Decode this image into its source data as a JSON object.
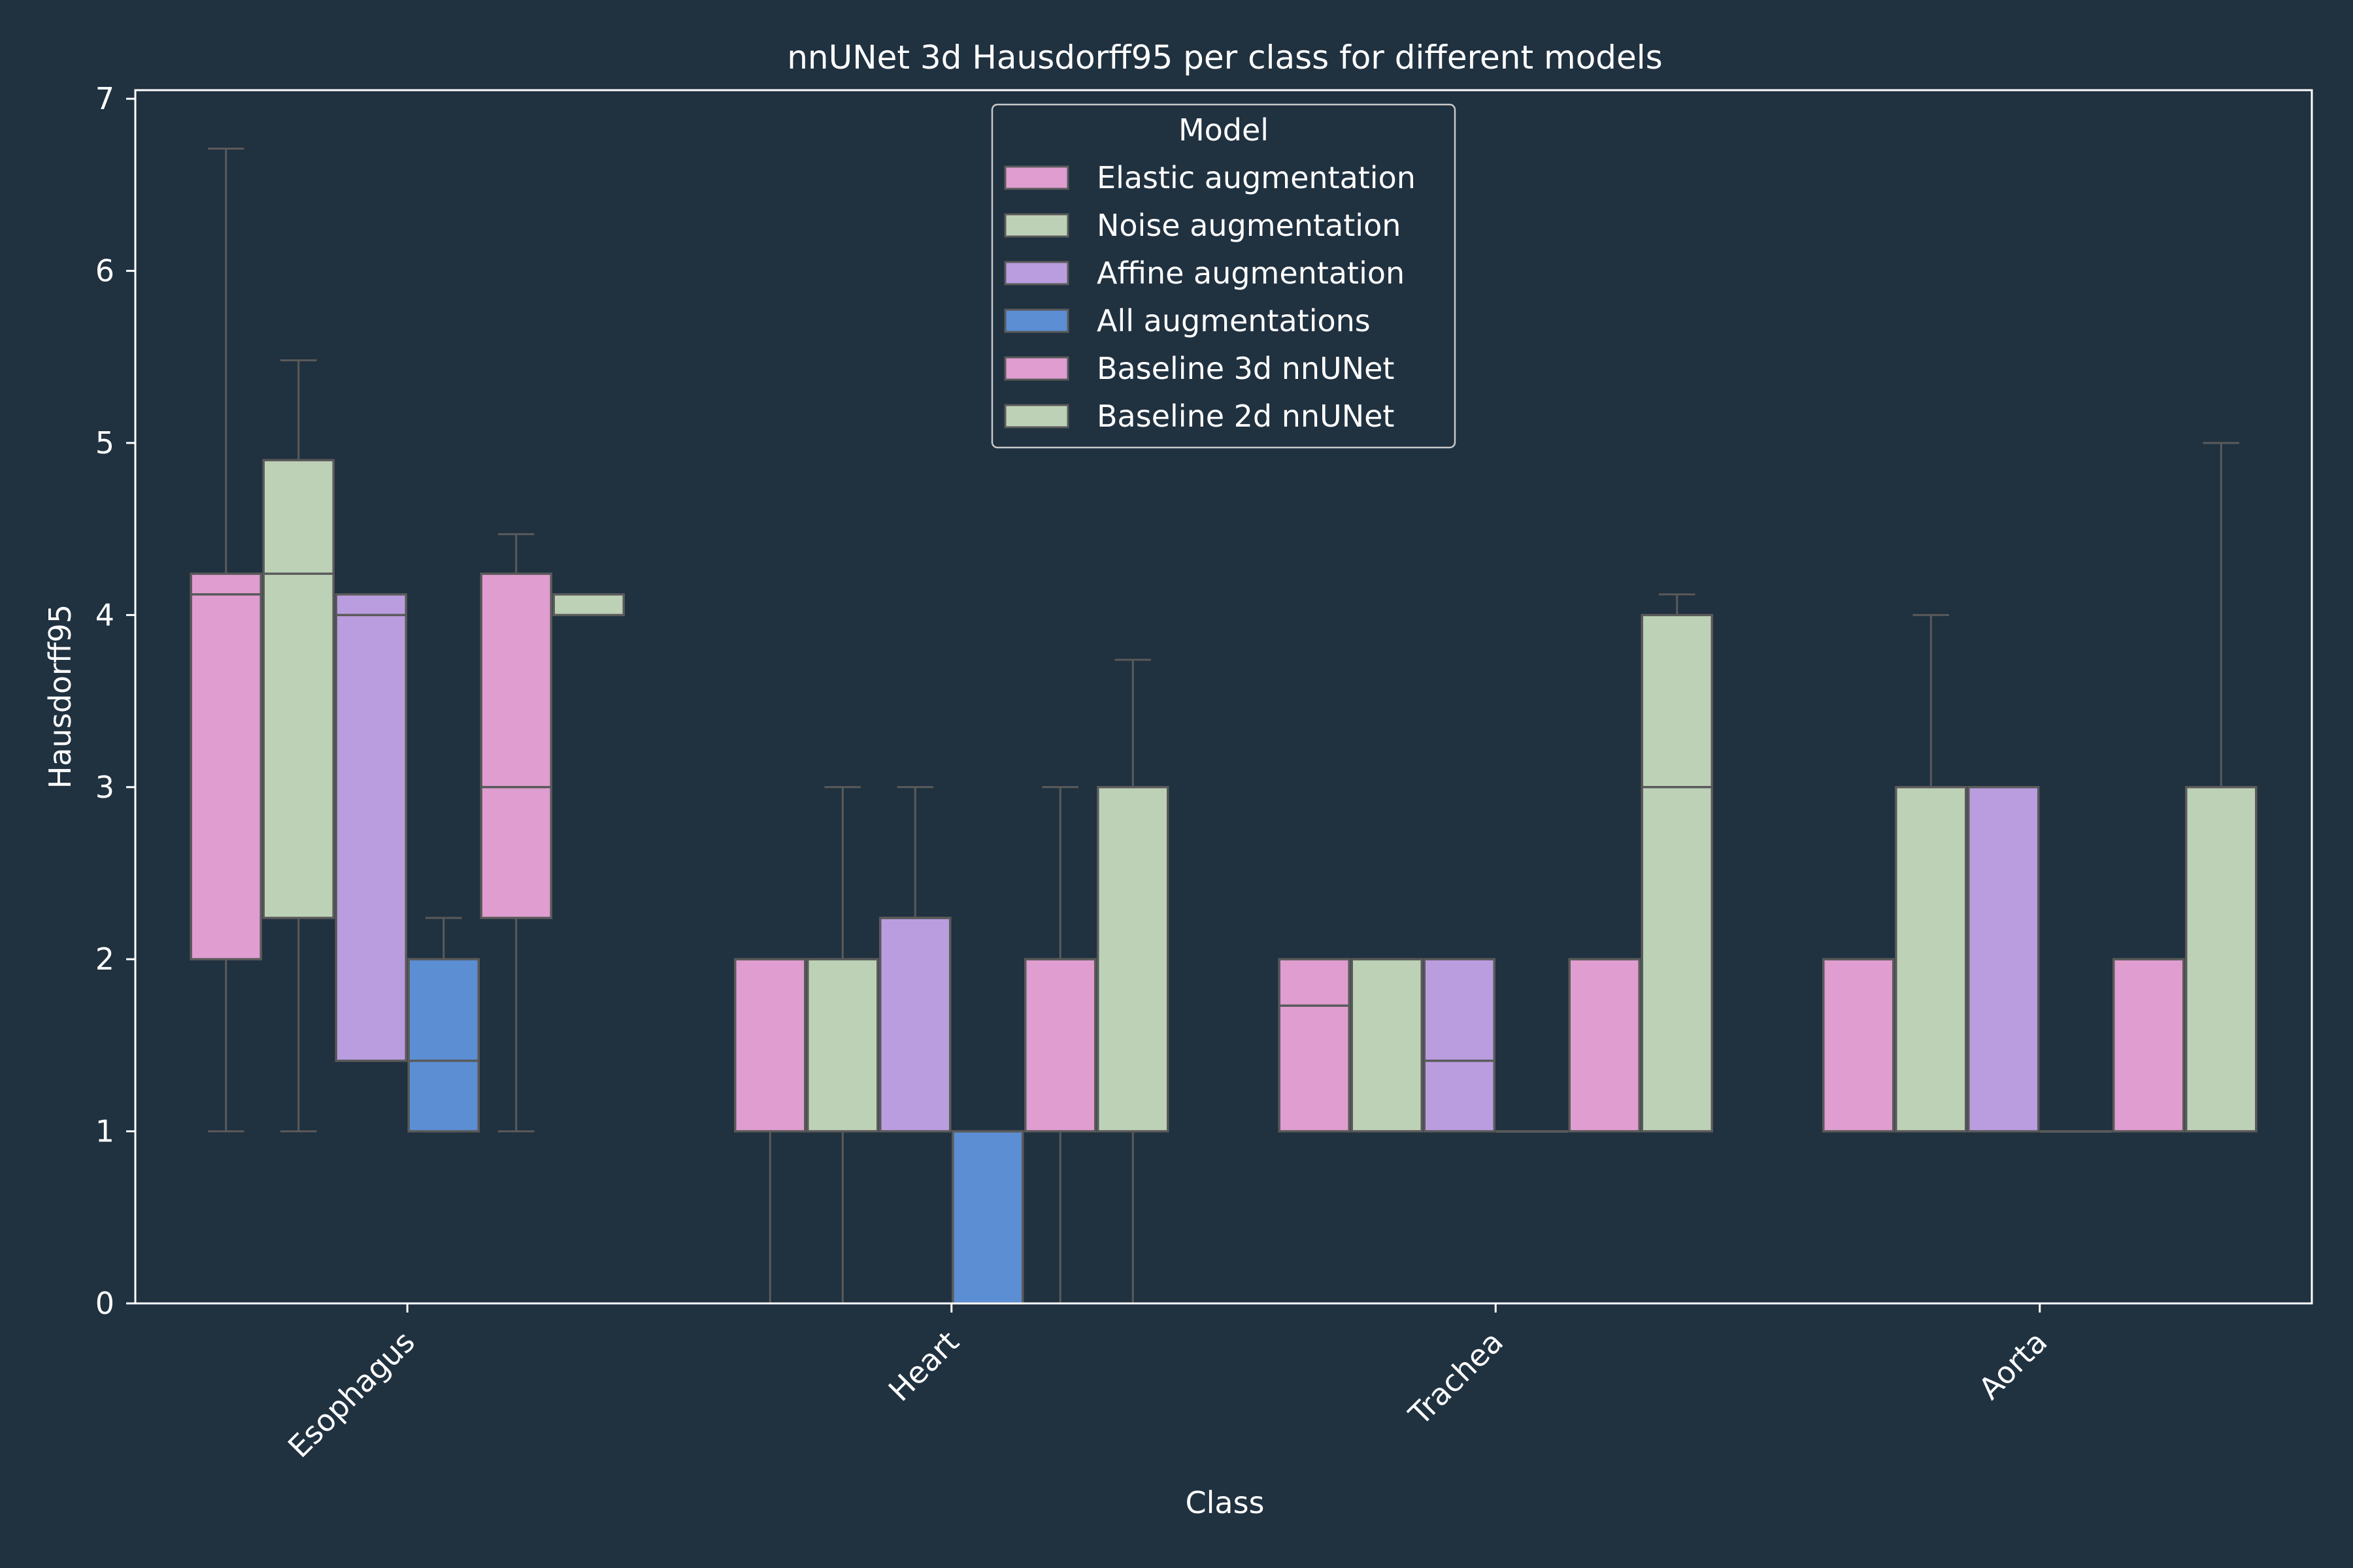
{
  "chart_data": {
    "type": "box",
    "title": "nnUNet 3d Hausdorff95 per class for different models",
    "xlabel": "Class",
    "ylabel": "Hausdorff95",
    "ylim": [
      0,
      7.05
    ],
    "yticks": [
      0,
      1,
      2,
      3,
      4,
      5,
      6,
      7
    ],
    "categories": [
      "Esophagus",
      "Heart",
      "Trachea",
      "Aorta"
    ],
    "legend": {
      "title": "Model",
      "position": "top-center"
    },
    "colors": {
      "background": "#203140",
      "box_edge": "#5a5a5a",
      "axis": "#ffffff"
    },
    "series": [
      {
        "name": "Elastic augmentation",
        "color": "#df9dd0",
        "boxes": [
          {
            "whislo": 1,
            "q1": 2,
            "med": 4.12,
            "q3": 4.24,
            "whishi": 6.71
          },
          {
            "whislo": 0,
            "q1": 1,
            "med": 2,
            "q3": 2,
            "whishi": 2
          },
          {
            "whislo": 1,
            "q1": 1,
            "med": 1.73,
            "q3": 2,
            "whishi": 2
          },
          {
            "whislo": 1,
            "q1": 1,
            "med": 2,
            "q3": 2,
            "whishi": 2
          }
        ]
      },
      {
        "name": "Noise augmentation",
        "color": "#bdd1b7",
        "boxes": [
          {
            "whislo": 1,
            "q1": 2.24,
            "med": 4.24,
            "q3": 4.9,
            "whishi": 5.48
          },
          {
            "whislo": 0,
            "q1": 1,
            "med": 2,
            "q3": 2,
            "whishi": 3
          },
          {
            "whislo": 1,
            "q1": 1,
            "med": 2,
            "q3": 2,
            "whishi": 2
          },
          {
            "whislo": 1,
            "q1": 1,
            "med": 3,
            "q3": 3,
            "whishi": 4
          }
        ]
      },
      {
        "name": "Affine augmentation",
        "color": "#ba9ddf",
        "boxes": [
          {
            "whislo": 1.41,
            "q1": 1.41,
            "med": 4,
            "q3": 4.12,
            "whishi": 4.12
          },
          {
            "whislo": 1,
            "q1": 1,
            "med": 2.24,
            "q3": 2.24,
            "whishi": 3
          },
          {
            "whislo": 1,
            "q1": 1,
            "med": 1.41,
            "q3": 2,
            "whishi": 2
          },
          {
            "whislo": 1,
            "q1": 1,
            "med": 3,
            "q3": 3,
            "whishi": 3
          }
        ]
      },
      {
        "name": "All augmentations",
        "color": "#5b8ed3",
        "boxes": [
          {
            "whislo": 1,
            "q1": 1,
            "med": 1.41,
            "q3": 2,
            "whishi": 2.24
          },
          {
            "whislo": 0,
            "q1": 0,
            "med": 1,
            "q3": 1,
            "whishi": 1
          },
          {
            "whislo": 1,
            "q1": 1,
            "med": 1,
            "q3": 1,
            "whishi": 1
          },
          {
            "whislo": 1,
            "q1": 1,
            "med": 1,
            "q3": 1,
            "whishi": 1
          }
        ]
      },
      {
        "name": "Baseline 3d nnUNet",
        "color": "#df9dd0",
        "boxes": [
          {
            "whislo": 1,
            "q1": 2.24,
            "med": 3,
            "q3": 4.24,
            "whishi": 4.47
          },
          {
            "whislo": 0,
            "q1": 1,
            "med": 2,
            "q3": 2,
            "whishi": 3
          },
          {
            "whislo": 1,
            "q1": 1,
            "med": 2,
            "q3": 2,
            "whishi": 2
          },
          {
            "whislo": 1,
            "q1": 1,
            "med": 2,
            "q3": 2,
            "whishi": 2
          }
        ]
      },
      {
        "name": "Baseline 2d nnUNet",
        "color": "#bdd1b7",
        "boxes": [
          {
            "whislo": 4,
            "q1": 4,
            "med": 4.12,
            "q3": 4.12,
            "whishi": 4.12
          },
          {
            "whislo": 0,
            "q1": 1,
            "med": 3,
            "q3": 3,
            "whishi": 3.74
          },
          {
            "whislo": 1,
            "q1": 1,
            "med": 3,
            "q3": 4,
            "whishi": 4.12
          },
          {
            "whislo": 1,
            "q1": 1,
            "med": 3,
            "q3": 3,
            "whishi": 5
          }
        ]
      }
    ]
  }
}
